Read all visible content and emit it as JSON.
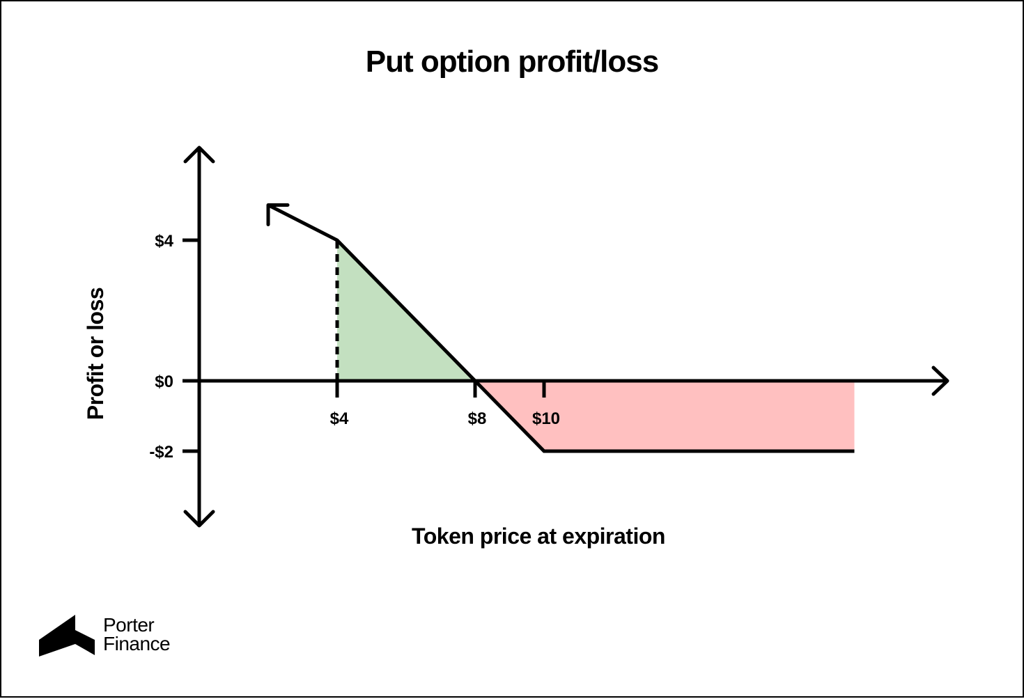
{
  "title": "Put option profit/loss",
  "colors": {
    "profit_fill": "#c3e0c0",
    "loss_fill": "#ffc0c0",
    "line": "#000000"
  },
  "logo": {
    "line1": "Porter",
    "line2": "Finance"
  },
  "chart_data": {
    "type": "line",
    "xlabel": "Token price at expiration",
    "ylabel": "Profit or loss",
    "x_ticks": [
      {
        "value": 4,
        "label": "$4"
      },
      {
        "value": 8,
        "label": "$8"
      },
      {
        "value": 10,
        "label": "$10"
      }
    ],
    "y_ticks": [
      {
        "value": 4,
        "label": "$4"
      },
      {
        "value": 0,
        "label": "$0"
      },
      {
        "value": -2,
        "label": "-$2"
      }
    ],
    "xlim": [
      0,
      21.5
    ],
    "ylim": [
      -4,
      6.5
    ],
    "series": [
      {
        "x": [
          2,
          4,
          8,
          10,
          19
        ],
        "y": [
          5,
          4,
          0,
          -2,
          -2
        ]
      }
    ],
    "profit_region": {
      "x": [
        4,
        8
      ],
      "y": [
        4,
        0
      ]
    },
    "loss_region": {
      "x": [
        8,
        10,
        19
      ],
      "y": [
        0,
        -2,
        -2
      ]
    },
    "reference_line": {
      "x": 4,
      "y_from": 0,
      "y_to": 4,
      "style": "dashed"
    },
    "grid": false,
    "legend": "none"
  }
}
